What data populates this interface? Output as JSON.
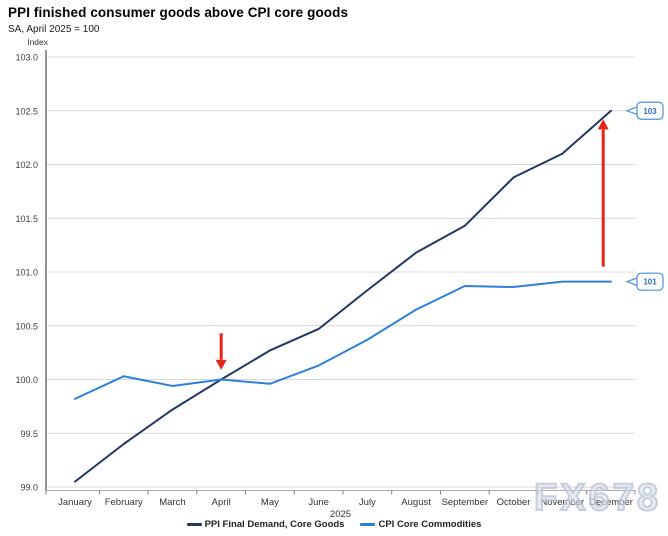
{
  "header": {
    "title": "PPI finished consumer goods above CPI core goods",
    "subtitle": "SA, April 2025 = 100"
  },
  "watermark": "FX678",
  "chart_data": {
    "type": "line",
    "title": "PPI finished consumer goods above CPI core goods",
    "subtitle": "SA, April 2025 = 100",
    "ylabel": "Index",
    "x_axis_year": "2025",
    "categories": [
      "January",
      "February",
      "March",
      "April",
      "May",
      "June",
      "July",
      "August",
      "September",
      "October",
      "November",
      "December"
    ],
    "ylim": [
      99.0,
      103.0
    ],
    "yticks": [
      "99.0",
      "99.5",
      "100.0",
      "100.5",
      "101.0",
      "101.5",
      "102.0",
      "102.5",
      "103.0"
    ],
    "grid": true,
    "legend_position": "bottom",
    "series": [
      {
        "name": "PPI Final Demand, Core Goods",
        "color": "#1f3864",
        "values": [
          99.05,
          99.4,
          99.72,
          100.0,
          100.27,
          100.47,
          100.83,
          101.18,
          101.43,
          101.88,
          102.1,
          102.5
        ]
      },
      {
        "name": "CPI Core Commodities",
        "color": "#2e80d9",
        "values": [
          99.82,
          100.03,
          99.94,
          100.0,
          99.96,
          100.13,
          100.37,
          100.65,
          100.87,
          100.86,
          100.91,
          100.91
        ]
      }
    ],
    "end_callouts": [
      {
        "label": "103",
        "series_index": 0
      },
      {
        "label": "101",
        "series_index": 1
      }
    ],
    "annotations": [
      {
        "shape": "arrow",
        "direction": "down",
        "color": "#e8231a",
        "x_index": 3,
        "y_from": 100.43,
        "y_to": 100.09
      },
      {
        "shape": "arrow",
        "direction": "up",
        "color": "#e8231a",
        "x_index": 10.84,
        "y_from": 101.05,
        "y_to": 102.42
      }
    ]
  }
}
